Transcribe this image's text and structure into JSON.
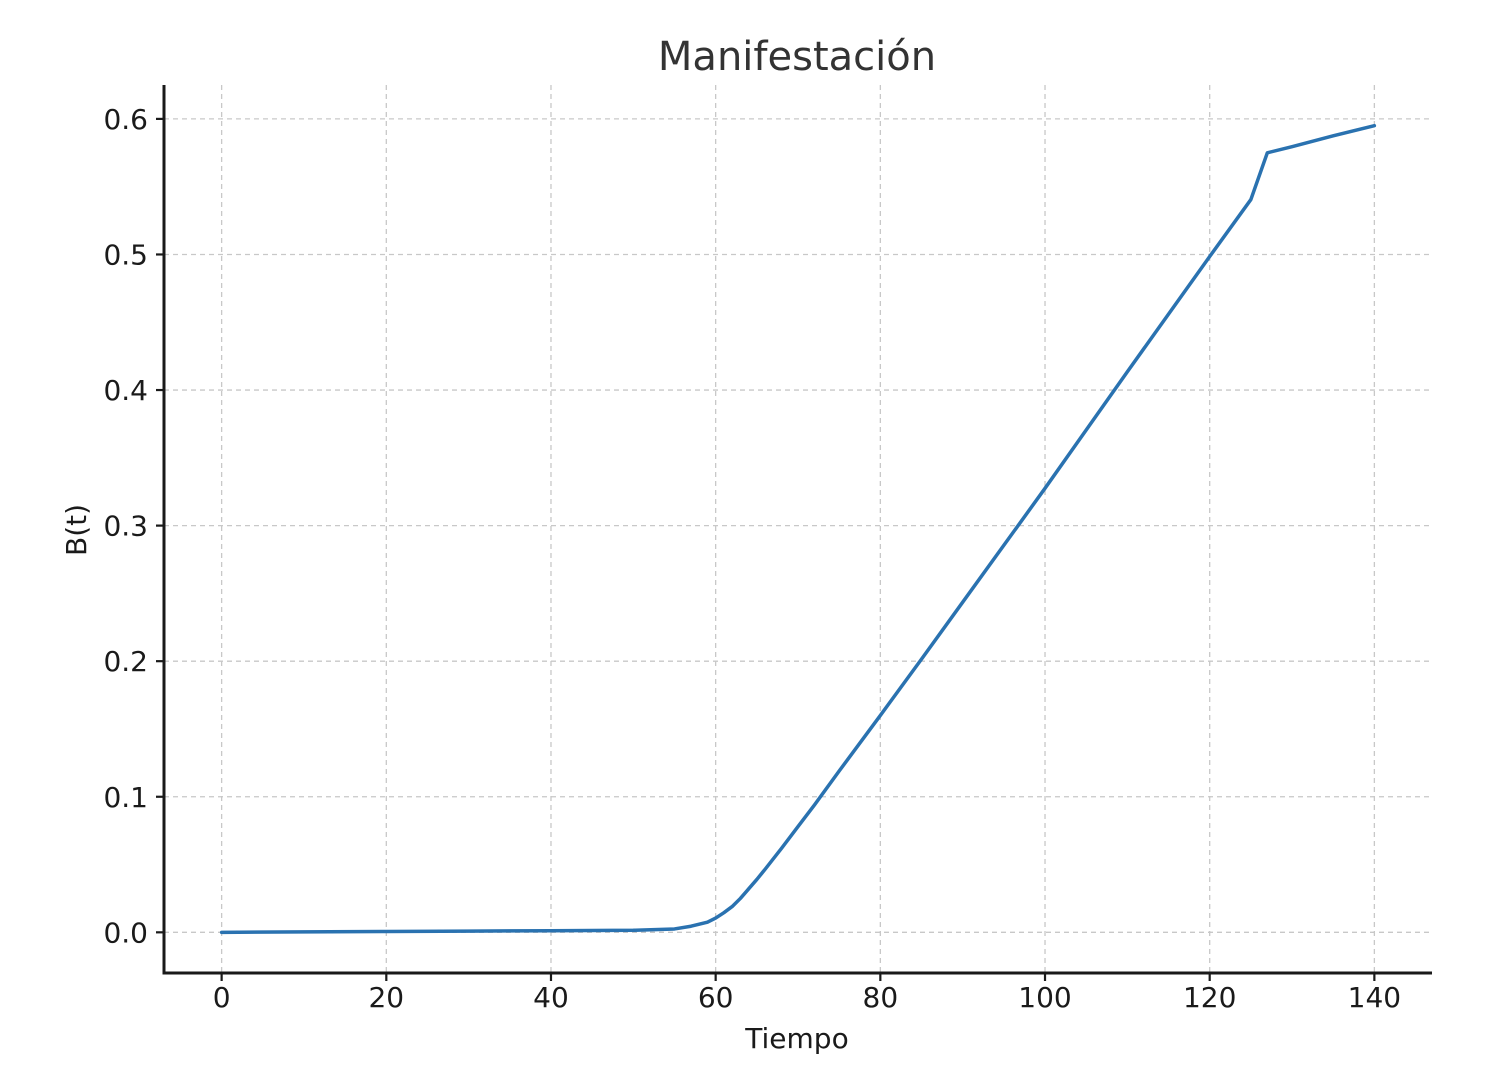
{
  "chart_data": {
    "type": "line",
    "title": "Manifestación",
    "xlabel": "Tiempo",
    "ylabel": "B(t)",
    "xlim": [
      -7,
      147
    ],
    "ylim": [
      -0.03,
      0.625
    ],
    "xticks": [
      0,
      20,
      40,
      60,
      80,
      100,
      120,
      140
    ],
    "xtick_labels": [
      "0",
      "20",
      "40",
      "60",
      "80",
      "100",
      "120",
      "140"
    ],
    "yticks": [
      0.0,
      0.1,
      0.2,
      0.3,
      0.4,
      0.5,
      0.6
    ],
    "ytick_labels": [
      "0.0",
      "0.1",
      "0.2",
      "0.3",
      "0.4",
      "0.5",
      "0.6"
    ],
    "grid": true,
    "series": [
      {
        "color": "#2a72b0",
        "x": [
          0,
          10,
          20,
          30,
          40,
          50,
          55,
          57,
          59,
          60,
          61,
          62,
          63,
          64,
          65,
          66,
          68,
          70,
          72,
          75,
          80,
          85,
          90,
          95,
          100,
          105,
          110,
          115,
          120,
          125,
          127,
          130,
          135,
          140
        ],
        "y": [
          0.0,
          0.0003,
          0.0006,
          0.0009,
          0.0012,
          0.0015,
          0.0025,
          0.0045,
          0.0075,
          0.0105,
          0.0145,
          0.019,
          0.025,
          0.032,
          0.039,
          0.0465,
          0.062,
          0.078,
          0.094,
          0.119,
          0.16,
          0.2015,
          0.2435,
          0.2855,
          0.3275,
          0.3705,
          0.4135,
          0.456,
          0.4985,
          0.5405,
          0.575,
          0.5795,
          0.5875,
          0.595
        ]
      }
    ]
  }
}
